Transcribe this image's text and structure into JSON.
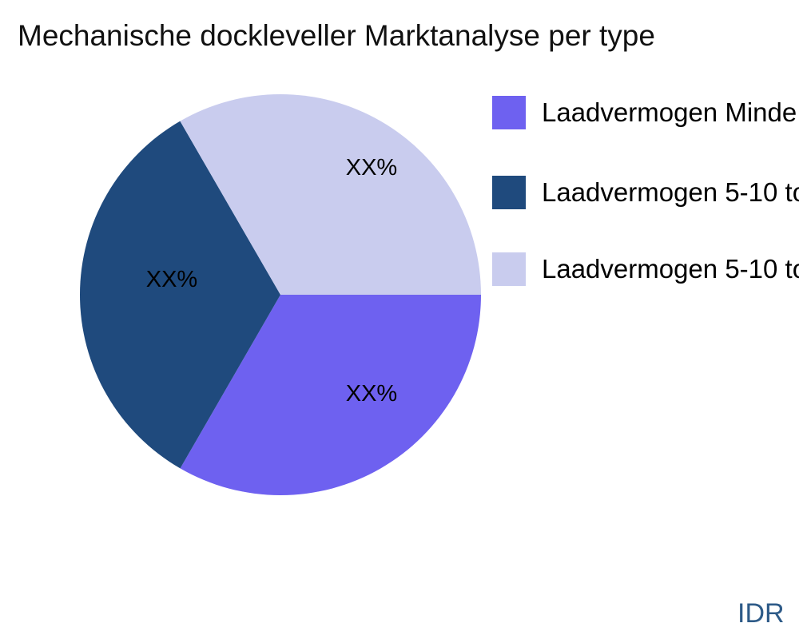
{
  "chart_data": {
    "type": "pie",
    "title": "Mechanische dockleveller Marktanalyse per type",
    "legend_position": "right",
    "rotation_deg": 0,
    "direction": "clockwise",
    "labels_inside": true,
    "currency_note": "IDR",
    "slices": [
      {
        "label": "Laadvermogen Minde",
        "display_value": "XX%",
        "value": 33.33,
        "color": "#6E61F0"
      },
      {
        "label": "Laadvermogen 5-10 to",
        "display_value": "XX%",
        "value": 33.33,
        "color": "#1F4A7D"
      },
      {
        "label": "Laadvermogen 5-10 to",
        "display_value": "XX%",
        "value": 33.34,
        "color": "#C9CCEE"
      }
    ]
  }
}
